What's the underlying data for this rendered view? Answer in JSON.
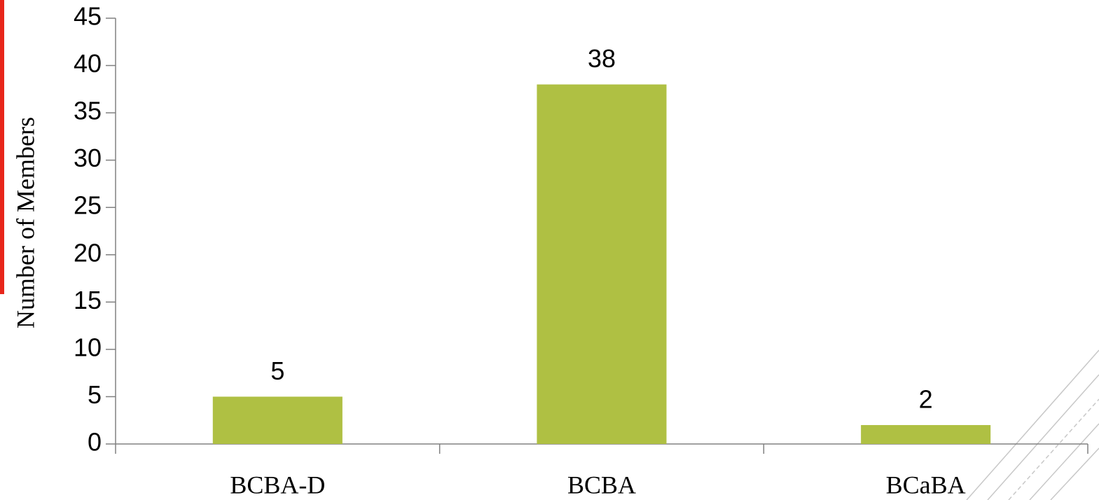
{
  "chart_data": {
    "type": "bar",
    "y_label": "Number of Members",
    "categories": [
      "BCBA-D",
      "BCBA",
      "BCaBA"
    ],
    "values": [
      5,
      38,
      2
    ],
    "color": "#afc043",
    "ylim": [
      0,
      45
    ],
    "yticks": [
      0,
      5,
      10,
      15,
      20,
      25,
      30,
      35,
      40,
      45
    ],
    "grid": false
  }
}
